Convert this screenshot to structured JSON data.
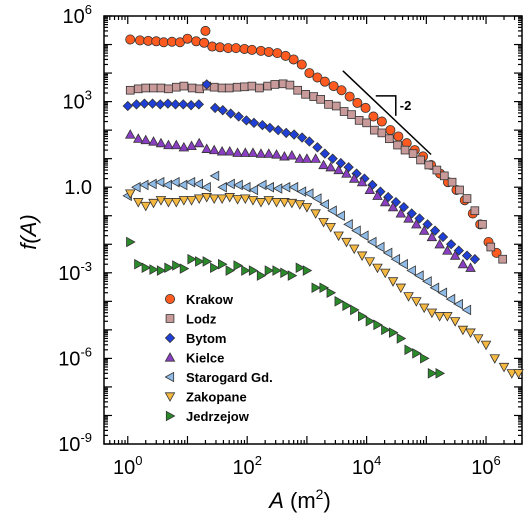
{
  "chart_data": {
    "type": "scatter",
    "x_scale": "log",
    "y_scale": "log",
    "xlim": [
      0.4,
      4000000
    ],
    "ylim": [
      1e-09,
      1000000.0
    ],
    "x_ticks": [
      {
        "value": 1,
        "base": "10",
        "exp": "0"
      },
      {
        "value": 100,
        "base": "10",
        "exp": "2"
      },
      {
        "value": 10000,
        "base": "10",
        "exp": "4"
      },
      {
        "value": 1000000,
        "base": "10",
        "exp": "6"
      }
    ],
    "y_ticks": [
      {
        "value": 1e-09,
        "base": "10",
        "exp": "-9"
      },
      {
        "value": 1e-06,
        "base": "10",
        "exp": "-6"
      },
      {
        "value": 0.001,
        "base": "10",
        "exp": "-3"
      },
      {
        "value": 1,
        "base": "10",
        "exp": "0",
        "text": "1.0"
      },
      {
        "value": 1000,
        "base": "10",
        "exp": "3"
      },
      {
        "value": 1000000.0,
        "base": "10",
        "exp": "6"
      }
    ],
    "xlabel": {
      "main": "A",
      "unit": " (m",
      "sup": "2",
      "close": ")"
    },
    "ylabel": "f(A)",
    "grid": false,
    "legend_position": "bottom-left",
    "annotation": {
      "label": "-2",
      "slope": -2,
      "line_x": [
        4000,
        120000
      ],
      "line_y": [
        12000,
        14
      ]
    },
    "series": [
      {
        "name": "Krakow",
        "marker": "circle",
        "color": "#ff5a1f",
        "x": [
          1.1,
          1.6,
          2.2,
          3.0,
          4.0,
          5.5,
          7.5,
          10,
          14,
          19,
          20,
          26,
          35,
          48,
          65,
          90,
          120,
          170,
          230,
          320,
          440,
          600,
          820,
          1100,
          1500,
          2000,
          2800,
          3800,
          5200,
          7000,
          9600,
          13000,
          18000,
          25000,
          34000,
          47000,
          64000,
          88000,
          120000,
          170000,
          230000,
          320000,
          440000,
          600000,
          800000,
          1100000,
          1500000
        ],
        "y": [
          150000,
          140000,
          135000,
          130000,
          120000,
          125000,
          120000,
          160000,
          130000,
          115000,
          300000,
          85000,
          80000,
          75000,
          75000,
          70000,
          65000,
          60000,
          55000,
          50000,
          40000,
          30000,
          20000,
          10000,
          7000,
          5000,
          3500,
          2500,
          1500,
          900,
          600,
          300,
          200,
          100,
          60,
          35,
          20,
          12,
          6,
          3,
          1.5,
          0.8,
          0.35,
          0.12,
          0.05,
          0.012,
          0.005
        ]
      },
      {
        "name": "Lodz",
        "marker": "square",
        "color": "#c99a9a",
        "x": [
          1.1,
          1.5,
          2.0,
          2.7,
          3.6,
          4.8,
          6.5,
          8.7,
          12,
          16,
          21,
          28,
          38,
          50,
          68,
          90,
          120,
          160,
          220,
          290,
          400,
          520,
          700,
          950,
          1300,
          1700,
          2300,
          3100,
          4200,
          5600,
          7500,
          10000,
          13500,
          18000,
          24000,
          33000,
          44000,
          60000,
          80000,
          110000,
          150000,
          200000,
          270000,
          360000,
          480000,
          650000,
          870000,
          1200000,
          1900000
        ],
        "y": [
          2500,
          2800,
          3000,
          3000,
          3000,
          2800,
          3200,
          3500,
          3000,
          2800,
          3500,
          3200,
          3000,
          3000,
          3200,
          3300,
          3500,
          3000,
          3500,
          4000,
          4200,
          3800,
          2500,
          1800,
          1500,
          1200,
          800,
          700,
          450,
          350,
          220,
          180,
          100,
          80,
          50,
          30,
          20,
          15,
          9,
          6,
          4,
          2.5,
          1.5,
          0.8,
          0.4,
          0.15,
          0.05,
          0.008,
          0.003
        ]
      },
      {
        "name": "Bytom",
        "marker": "diamond",
        "color": "#1f3fd6",
        "x": [
          1.0,
          1.4,
          1.9,
          2.6,
          3.5,
          4.7,
          6.3,
          8.5,
          11.5,
          15.5,
          21,
          29,
          39,
          53,
          72,
          97,
          130,
          180,
          240,
          330,
          450,
          610,
          830,
          1100,
          1500,
          2000,
          2700,
          3700,
          5000,
          6800,
          9200,
          12500,
          17000,
          23000,
          31000,
          42000,
          57000,
          77000,
          105000,
          140000,
          190000,
          260000,
          350000,
          480000,
          650000
        ],
        "y": [
          700,
          800,
          850,
          850,
          800,
          850,
          800,
          800,
          750,
          800,
          4000,
          600,
          500,
          380,
          300,
          220,
          180,
          150,
          120,
          100,
          80,
          70,
          55,
          40,
          25,
          15,
          10,
          7,
          5,
          3,
          2,
          1.2,
          0.7,
          0.45,
          0.3,
          0.2,
          0.12,
          0.08,
          0.05,
          0.03,
          0.018,
          0.01,
          0.006,
          0.004,
          0.003
        ]
      },
      {
        "name": "Kielce",
        "marker": "triangle-up",
        "color": "#8a3fc2",
        "x": [
          1.1,
          1.5,
          2.0,
          2.7,
          3.6,
          4.8,
          6.5,
          8.7,
          11.7,
          15.7,
          21,
          28,
          38,
          51,
          69,
          93,
          125,
          170,
          230,
          310,
          420,
          560,
          760,
          1000,
          1400,
          1900,
          2500,
          3400,
          4600,
          6200,
          8400,
          11300,
          15200,
          20500,
          27700,
          37400,
          50400,
          68000,
          92000,
          124000,
          167000,
          225000,
          304000,
          410000,
          550000
        ],
        "y": [
          70,
          50,
          45,
          40,
          35,
          30,
          30,
          25,
          28,
          35,
          22,
          20,
          18,
          18,
          16,
          16,
          16,
          15,
          15,
          14,
          12,
          13,
          10,
          10,
          10,
          6,
          5,
          4,
          3,
          2,
          1.5,
          0.8,
          0.5,
          0.3,
          0.2,
          0.12,
          0.08,
          0.05,
          0.03,
          0.018,
          0.01,
          0.006,
          0.004,
          0.002,
          0.0015
        ]
      },
      {
        "name": "Starogard Gd.",
        "marker": "triangle-left",
        "color": "#8fbbe6",
        "x": [
          1.0,
          1.4,
          1.9,
          2.6,
          3.5,
          4.7,
          6.3,
          8.5,
          11.5,
          15.5,
          21,
          29,
          39,
          53,
          72,
          97,
          130,
          180,
          240,
          330,
          450,
          610,
          830,
          1100,
          1500,
          2000,
          2700,
          3700,
          5000,
          6800,
          9200,
          12500,
          17000,
          23000,
          31000,
          42000,
          57000,
          77000,
          105000,
          140000,
          190000,
          260000,
          350000,
          480000
        ],
        "y": [
          0.5,
          1,
          1.2,
          1.3,
          1.5,
          1.2,
          1.5,
          1.2,
          1.5,
          1.3,
          1.0,
          2.5,
          1.0,
          1.3,
          1.2,
          1.0,
          0.8,
          1.2,
          1.0,
          0.9,
          1.0,
          1.0,
          0.7,
          0.6,
          0.4,
          0.25,
          0.15,
          0.1,
          0.05,
          0.03,
          0.02,
          0.012,
          0.008,
          0.005,
          0.003,
          0.002,
          0.0012,
          0.0008,
          0.0005,
          0.0003,
          0.0002,
          0.00012,
          8e-05,
          5e-05
        ]
      },
      {
        "name": "Zakopane",
        "marker": "triangle-down",
        "color": "#f5b942",
        "x": [
          1.1,
          1.5,
          2.0,
          2.7,
          3.6,
          4.8,
          6.5,
          8.7,
          11.7,
          15.7,
          21,
          28,
          38,
          51,
          69,
          93,
          125,
          170,
          230,
          310,
          420,
          560,
          760,
          1000,
          1400,
          1900,
          2500,
          3400,
          4600,
          6200,
          8400,
          11300,
          15200,
          20500,
          27700,
          37400,
          50400,
          68000,
          92000,
          124000,
          167000,
          225000,
          304000,
          410000,
          550000,
          740000,
          1000000,
          1400000,
          2000000,
          2700000,
          3500000
        ],
        "y": [
          0.6,
          0.3,
          0.22,
          0.28,
          0.35,
          0.3,
          0.3,
          0.35,
          0.35,
          0.4,
          0.45,
          0.4,
          0.4,
          0.45,
          0.38,
          0.4,
          0.35,
          0.3,
          0.35,
          0.3,
          0.3,
          0.28,
          0.25,
          0.2,
          0.12,
          0.06,
          0.04,
          0.02,
          0.012,
          0.007,
          0.004,
          0.0025,
          0.0015,
          0.001,
          0.0005,
          0.0003,
          0.00015,
          0.0001,
          6e-05,
          4e-05,
          3e-05,
          3e-05,
          2e-05,
          1e-05,
          8e-06,
          5e-06,
          3e-06,
          1e-06,
          5e-07,
          3e-07,
          3e-07
        ]
      },
      {
        "name": "Jedrzejow",
        "marker": "triangle-right",
        "color": "#2a8a2a",
        "x": [
          1.1,
          1.5,
          2.0,
          2.7,
          3.6,
          4.8,
          6.5,
          8.7,
          11.7,
          15.7,
          21,
          28,
          38,
          51,
          69,
          93,
          125,
          170,
          230,
          310,
          420,
          560,
          760,
          1000,
          1400,
          1900,
          2500,
          3400,
          4600,
          6200,
          8400,
          11300,
          15200,
          20500,
          27700,
          37400,
          50400,
          68000,
          92000,
          124000,
          167000
        ],
        "y": [
          0.012,
          0.002,
          0.0015,
          0.0013,
          0.0012,
          0.0015,
          0.0018,
          0.0014,
          0.003,
          0.0025,
          0.0025,
          0.0015,
          0.002,
          0.0012,
          0.0018,
          0.0012,
          0.0012,
          0.0008,
          0.0012,
          0.0012,
          0.001,
          0.0008,
          0.0015,
          0.0012,
          0.0003,
          0.0003,
          0.0002,
          0.0001,
          7e-05,
          5e-05,
          3e-05,
          2e-05,
          1.5e-05,
          1e-05,
          8e-06,
          5e-06,
          2e-06,
          1.5e-06,
          1e-06,
          3e-07,
          3e-07
        ]
      }
    ]
  }
}
